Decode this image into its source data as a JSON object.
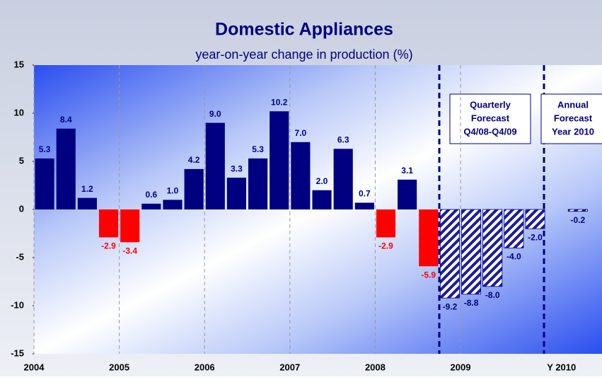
{
  "chart_data": {
    "type": "bar",
    "title": "Domestic Appliances",
    "subtitle": "year-on-year change in production (%)",
    "categories": [
      "2004",
      null,
      null,
      null,
      "2005",
      null,
      null,
      null,
      "2006",
      null,
      null,
      null,
      "2007",
      null,
      null,
      null,
      "2008",
      null,
      null,
      null,
      "2009",
      null,
      null,
      null,
      "Y 2010"
    ],
    "values": [
      5.3,
      8.4,
      1.2,
      -2.9,
      -3.4,
      0.6,
      1.0,
      4.2,
      9.0,
      3.3,
      5.3,
      10.2,
      7.0,
      2.0,
      6.3,
      0.7,
      -2.9,
      3.1,
      -5.9,
      -9.2,
      -8.8,
      -8.0,
      -4.0,
      -2.0,
      -0.2
    ],
    "value_labels": [
      "5.3",
      "8.4",
      "1.2",
      "-2.9",
      "-3.4",
      "0.6",
      "1.0",
      "4.2",
      "9.0",
      "3.3",
      "5.3",
      "10.2",
      "7.0",
      "2.0",
      "6.3",
      "0.7",
      "-2.9",
      "3.1",
      "-5.9",
      "-9.2",
      "-8.8",
      "-8.0",
      "-4.0",
      "-2.0",
      "-0.2"
    ],
    "colors": [
      "#000080",
      "#000080",
      "#000080",
      "#ff0000",
      "#ff0000",
      "#000080",
      "#000080",
      "#000080",
      "#000080",
      "#000080",
      "#000080",
      "#000080",
      "#000080",
      "#000080",
      "#000080",
      "#000080",
      "#ff0000",
      "#000080",
      "#ff0000",
      "hatched",
      "hatched",
      "hatched",
      "hatched",
      "hatched",
      "hatched"
    ],
    "ylim": [
      -15,
      15
    ],
    "yticks": [
      15,
      10,
      5,
      0,
      -5,
      -10,
      -15
    ],
    "annotations": [
      [
        "Quarterly",
        "Forecast",
        "Q4/08-Q4/09"
      ],
      [
        "Annual",
        "Forecast",
        "Year 2010"
      ]
    ]
  }
}
